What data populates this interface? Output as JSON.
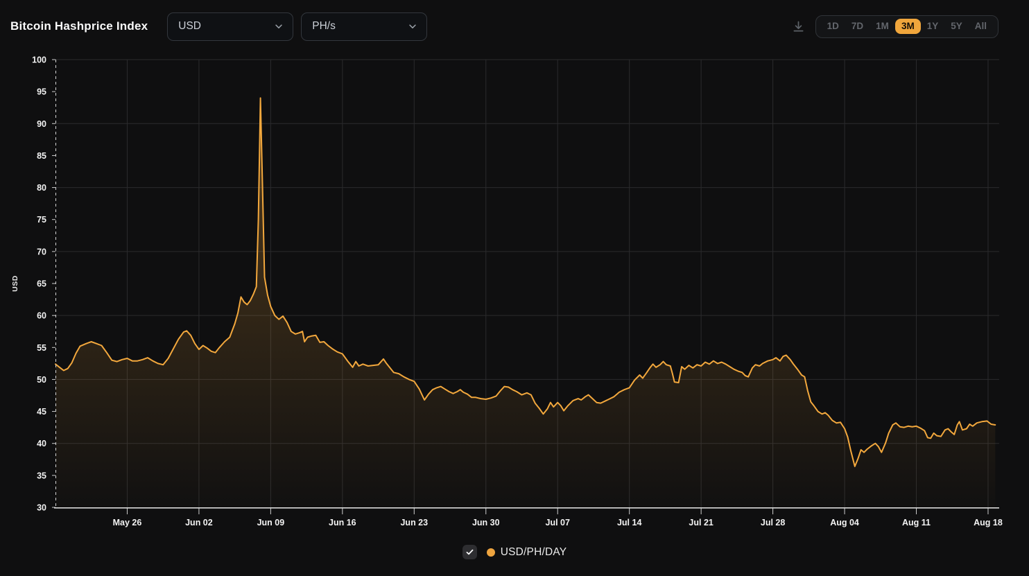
{
  "header": {
    "title": "Bitcoin Hashprice Index",
    "currency_dropdown": {
      "value": "USD"
    },
    "unit_dropdown": {
      "value": "PH/s"
    },
    "range_buttons": [
      "1D",
      "7D",
      "1M",
      "3M",
      "1Y",
      "5Y",
      "All"
    ],
    "selected_range": "3M",
    "selected_range_index": 3
  },
  "colors": {
    "background": "#0f0f10",
    "grid": "#2b2b2d",
    "axis_dashed": "#d6d6d6",
    "axis_solid": "#e9e9e9",
    "tick_label": "#f3f3f3",
    "accent": "#f0a63c",
    "line": "#f3a83d",
    "legend_dot": "#eea43f"
  },
  "legend": {
    "checkbox_checked": true,
    "label": "USD/PH/DAY"
  },
  "chart_data": {
    "type": "area",
    "title": "Bitcoin Hashprice Index",
    "xlabel": "",
    "ylabel": "USD",
    "ylim": [
      30,
      100
    ],
    "grid": true,
    "legend_position": "bottom-center",
    "y_ticks": [
      30,
      35,
      40,
      45,
      50,
      55,
      60,
      65,
      70,
      75,
      80,
      85,
      90,
      95,
      100
    ],
    "y_gridlines": [
      40,
      50,
      60,
      70,
      80,
      90,
      100
    ],
    "x_ticks": [
      {
        "label": "May 26",
        "day": 7
      },
      {
        "label": "Jun 02",
        "day": 14
      },
      {
        "label": "Jun 09",
        "day": 21
      },
      {
        "label": "Jun 16",
        "day": 28
      },
      {
        "label": "Jun 23",
        "day": 35
      },
      {
        "label": "Jun 30",
        "day": 42
      },
      {
        "label": "Jul 07",
        "day": 49
      },
      {
        "label": "Jul 14",
        "day": 56
      },
      {
        "label": "Jul 21",
        "day": 63
      },
      {
        "label": "Jul 28",
        "day": 70
      },
      {
        "label": "Aug 04",
        "day": 77
      },
      {
        "label": "Aug 11",
        "day": 84
      },
      {
        "label": "Aug 18",
        "day": 91
      }
    ],
    "series": [
      {
        "name": "USD/PH/DAY",
        "color": "#f3a83d",
        "points": [
          [
            0,
            52.4
          ],
          [
            0.4,
            51.9
          ],
          [
            0.8,
            51.4
          ],
          [
            1.2,
            51.7
          ],
          [
            1.6,
            52.6
          ],
          [
            2,
            54.1
          ],
          [
            2.4,
            55.2
          ],
          [
            3,
            55.6
          ],
          [
            3.5,
            55.9
          ],
          [
            4,
            55.6
          ],
          [
            4.5,
            55.3
          ],
          [
            5,
            54.2
          ],
          [
            5.5,
            53.0
          ],
          [
            6,
            52.8
          ],
          [
            6.5,
            53.1
          ],
          [
            7,
            53.3
          ],
          [
            7.5,
            52.9
          ],
          [
            8,
            52.9
          ],
          [
            8.5,
            53.1
          ],
          [
            9,
            53.4
          ],
          [
            9.5,
            52.9
          ],
          [
            10,
            52.5
          ],
          [
            10.5,
            52.3
          ],
          [
            11,
            53.3
          ],
          [
            11.5,
            54.8
          ],
          [
            12,
            56.3
          ],
          [
            12.5,
            57.4
          ],
          [
            12.8,
            57.6
          ],
          [
            13.2,
            56.9
          ],
          [
            13.6,
            55.6
          ],
          [
            14,
            54.7
          ],
          [
            14.4,
            55.3
          ],
          [
            14.8,
            54.9
          ],
          [
            15.2,
            54.4
          ],
          [
            15.6,
            54.2
          ],
          [
            16,
            55.0
          ],
          [
            16.5,
            55.9
          ],
          [
            17,
            56.6
          ],
          [
            17.5,
            58.7
          ],
          [
            17.8,
            60.4
          ],
          [
            18.1,
            62.9
          ],
          [
            18.4,
            62.1
          ],
          [
            18.7,
            61.7
          ],
          [
            19,
            62.3
          ],
          [
            19.3,
            63.3
          ],
          [
            19.6,
            64.5
          ],
          [
            19.8,
            75.0
          ],
          [
            20,
            94.0
          ],
          [
            20.2,
            80.0
          ],
          [
            20.4,
            66.0
          ],
          [
            20.7,
            63.2
          ],
          [
            21,
            61.4
          ],
          [
            21.4,
            60.0
          ],
          [
            21.8,
            59.4
          ],
          [
            22.2,
            59.9
          ],
          [
            22.6,
            58.9
          ],
          [
            23,
            57.5
          ],
          [
            23.4,
            57.1
          ],
          [
            23.8,
            57.3
          ],
          [
            24.1,
            57.5
          ],
          [
            24.3,
            55.9
          ],
          [
            24.6,
            56.6
          ],
          [
            25,
            56.8
          ],
          [
            25.4,
            56.9
          ],
          [
            25.8,
            55.8
          ],
          [
            26.2,
            55.9
          ],
          [
            26.6,
            55.3
          ],
          [
            27,
            54.8
          ],
          [
            27.5,
            54.3
          ],
          [
            28,
            54.0
          ],
          [
            28.5,
            52.9
          ],
          [
            29,
            51.9
          ],
          [
            29.3,
            52.8
          ],
          [
            29.6,
            52.1
          ],
          [
            30,
            52.4
          ],
          [
            30.5,
            52.1
          ],
          [
            31,
            52.2
          ],
          [
            31.5,
            52.3
          ],
          [
            32,
            53.2
          ],
          [
            32.3,
            52.5
          ],
          [
            32.7,
            51.7
          ],
          [
            33,
            51.1
          ],
          [
            33.5,
            50.9
          ],
          [
            34,
            50.4
          ],
          [
            34.5,
            50.0
          ],
          [
            35,
            49.7
          ],
          [
            35.5,
            48.5
          ],
          [
            36,
            46.8
          ],
          [
            36.4,
            47.7
          ],
          [
            36.8,
            48.4
          ],
          [
            37.2,
            48.7
          ],
          [
            37.6,
            48.9
          ],
          [
            38,
            48.5
          ],
          [
            38.4,
            48.1
          ],
          [
            38.8,
            47.8
          ],
          [
            39.2,
            48.1
          ],
          [
            39.5,
            48.4
          ],
          [
            39.8,
            48.0
          ],
          [
            40.2,
            47.7
          ],
          [
            40.6,
            47.2
          ],
          [
            41,
            47.2
          ],
          [
            41.5,
            47.0
          ],
          [
            42,
            46.9
          ],
          [
            42.5,
            47.1
          ],
          [
            43,
            47.4
          ],
          [
            43.4,
            48.2
          ],
          [
            43.8,
            48.9
          ],
          [
            44.2,
            48.8
          ],
          [
            44.6,
            48.4
          ],
          [
            45,
            48.1
          ],
          [
            45.5,
            47.6
          ],
          [
            46,
            47.9
          ],
          [
            46.4,
            47.6
          ],
          [
            46.8,
            46.3
          ],
          [
            47.2,
            45.5
          ],
          [
            47.6,
            44.6
          ],
          [
            48,
            45.4
          ],
          [
            48.3,
            46.4
          ],
          [
            48.6,
            45.7
          ],
          [
            49,
            46.4
          ],
          [
            49.3,
            45.9
          ],
          [
            49.6,
            45.1
          ],
          [
            50,
            45.9
          ],
          [
            50.5,
            46.7
          ],
          [
            51,
            47.0
          ],
          [
            51.3,
            46.8
          ],
          [
            51.7,
            47.3
          ],
          [
            52,
            47.6
          ],
          [
            52.4,
            47.0
          ],
          [
            52.8,
            46.4
          ],
          [
            53.2,
            46.3
          ],
          [
            53.6,
            46.6
          ],
          [
            54,
            46.9
          ],
          [
            54.5,
            47.3
          ],
          [
            55,
            48.0
          ],
          [
            55.5,
            48.4
          ],
          [
            56,
            48.7
          ],
          [
            56.5,
            49.9
          ],
          [
            57,
            50.7
          ],
          [
            57.3,
            50.2
          ],
          [
            57.7,
            51.1
          ],
          [
            58,
            51.8
          ],
          [
            58.3,
            52.4
          ],
          [
            58.6,
            51.9
          ],
          [
            59,
            52.3
          ],
          [
            59.3,
            52.8
          ],
          [
            59.6,
            52.3
          ],
          [
            60,
            52.1
          ],
          [
            60.2,
            50.9
          ],
          [
            60.4,
            49.6
          ],
          [
            60.8,
            49.5
          ],
          [
            61.1,
            52.0
          ],
          [
            61.4,
            51.6
          ],
          [
            61.8,
            52.2
          ],
          [
            62.2,
            51.8
          ],
          [
            62.6,
            52.3
          ],
          [
            63,
            52.1
          ],
          [
            63.4,
            52.7
          ],
          [
            63.8,
            52.4
          ],
          [
            64.2,
            52.9
          ],
          [
            64.6,
            52.5
          ],
          [
            65,
            52.7
          ],
          [
            65.4,
            52.4
          ],
          [
            65.8,
            52.0
          ],
          [
            66.2,
            51.6
          ],
          [
            66.6,
            51.3
          ],
          [
            67,
            51.1
          ],
          [
            67.3,
            50.6
          ],
          [
            67.6,
            50.4
          ],
          [
            68,
            51.8
          ],
          [
            68.3,
            52.3
          ],
          [
            68.7,
            52.1
          ],
          [
            69,
            52.5
          ],
          [
            69.5,
            52.9
          ],
          [
            70,
            53.1
          ],
          [
            70.3,
            53.4
          ],
          [
            70.7,
            52.9
          ],
          [
            71,
            53.6
          ],
          [
            71.3,
            53.8
          ],
          [
            71.7,
            53.1
          ],
          [
            72,
            52.4
          ],
          [
            72.4,
            51.6
          ],
          [
            72.8,
            50.7
          ],
          [
            73.1,
            50.4
          ],
          [
            73.4,
            48.2
          ],
          [
            73.7,
            46.5
          ],
          [
            74,
            45.9
          ],
          [
            74.4,
            45.0
          ],
          [
            74.8,
            44.6
          ],
          [
            75.1,
            44.8
          ],
          [
            75.4,
            44.4
          ],
          [
            75.8,
            43.6
          ],
          [
            76.2,
            43.2
          ],
          [
            76.6,
            43.3
          ],
          [
            77,
            42.3
          ],
          [
            77.3,
            41.0
          ],
          [
            77.6,
            38.9
          ],
          [
            78,
            36.4
          ],
          [
            78.3,
            37.6
          ],
          [
            78.6,
            39.0
          ],
          [
            78.9,
            38.6
          ],
          [
            79.2,
            39.1
          ],
          [
            79.6,
            39.6
          ],
          [
            80,
            40.0
          ],
          [
            80.3,
            39.5
          ],
          [
            80.6,
            38.6
          ],
          [
            81,
            40.1
          ],
          [
            81.3,
            41.6
          ],
          [
            81.7,
            42.9
          ],
          [
            82,
            43.2
          ],
          [
            82.4,
            42.6
          ],
          [
            82.8,
            42.5
          ],
          [
            83.2,
            42.7
          ],
          [
            83.6,
            42.6
          ],
          [
            84,
            42.7
          ],
          [
            84.4,
            42.4
          ],
          [
            84.8,
            42.0
          ],
          [
            85.1,
            40.9
          ],
          [
            85.4,
            40.8
          ],
          [
            85.7,
            41.6
          ],
          [
            86,
            41.2
          ],
          [
            86.4,
            41.1
          ],
          [
            86.8,
            42.1
          ],
          [
            87.1,
            42.3
          ],
          [
            87.4,
            41.8
          ],
          [
            87.7,
            41.4
          ],
          [
            88,
            42.9
          ],
          [
            88.2,
            43.4
          ],
          [
            88.5,
            42.1
          ],
          [
            88.9,
            42.3
          ],
          [
            89.2,
            43.0
          ],
          [
            89.5,
            42.7
          ],
          [
            89.9,
            43.2
          ],
          [
            90.4,
            43.4
          ],
          [
            90.9,
            43.5
          ],
          [
            91.3,
            43.0
          ],
          [
            91.7,
            42.9
          ]
        ]
      }
    ]
  }
}
